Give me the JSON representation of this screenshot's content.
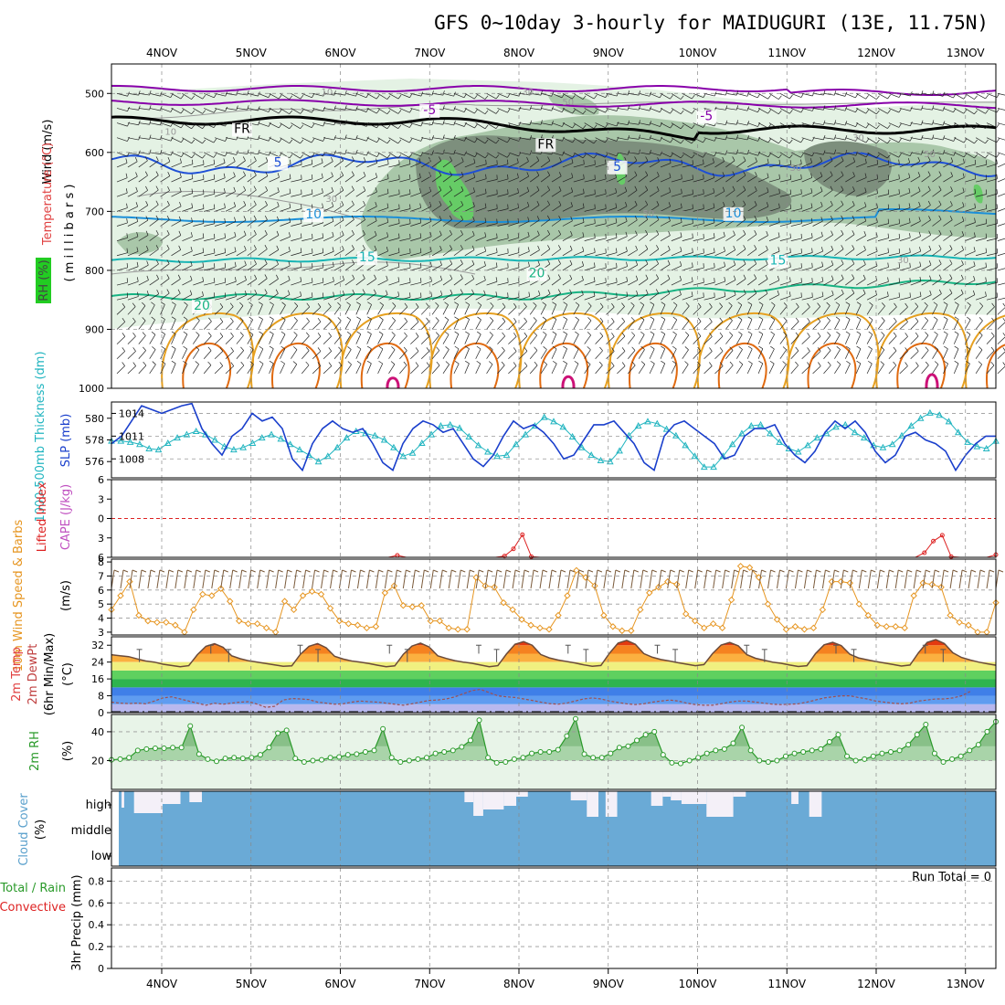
{
  "chart_data": {
    "type": "line",
    "title": "GFS 0~10day 3-hourly for MAIDUGURI (13E, 11.75N)",
    "x_dates": [
      "4NOV",
      "5NOV",
      "6NOV",
      "7NOV",
      "8NOV",
      "9NOV",
      "10NOV",
      "11NOV",
      "12NOV",
      "13NOV"
    ],
    "colors": {
      "rh_light": "#e4f2e4",
      "rh_mid": "#a9c7a9",
      "rh_dark": "#7d8f7d",
      "rh_bright": "#66cc66",
      "temp_purple": "#8800aa",
      "temp_fr": "#000000",
      "temp_blue": "#1e4fd6",
      "temp_lightblue": "#1b8fd8",
      "temp_teal": "#17b5b5",
      "temp_green": "#17b383",
      "cape_orange": "#e6a020",
      "cape_dark": "#e06a10",
      "cape_magenta": "#cc1177",
      "slp": "#1a3fcc",
      "thickness": "#22b5c0",
      "li": "#dd2222",
      "wind10": "#e69520",
      "cloud": "#6aaad6",
      "cloud_clear": "#f4f0f8",
      "rh2m": "#2a9a2a"
    },
    "panels": [
      {
        "id": "upper-air",
        "ylabel": "Wind (m/s)",
        "ylabel2": "Temperature (°C)",
        "ylabel3": "( m i l l i b a r s )",
        "rh_legend": "RH (%)",
        "y_ticks": [
          "500",
          "600",
          "700",
          "800",
          "900",
          "1000"
        ],
        "ylim": [
          450,
          1000
        ],
        "y_scale": "linear-reversed",
        "temp_labels": [
          {
            "text": "-5",
            "x": 3.0,
            "p": 535,
            "color_key": "temp_purple"
          },
          {
            "text": "-5",
            "x": 6.1,
            "p": 545,
            "color_key": "temp_purple"
          },
          {
            "text": "FR",
            "x": 0.9,
            "p": 567,
            "color_key": "temp_fr"
          },
          {
            "text": "FR",
            "x": 4.3,
            "p": 593,
            "color_key": "temp_fr"
          },
          {
            "text": "5",
            "x": 1.3,
            "p": 624,
            "color_key": "temp_blue"
          },
          {
            "text": "5",
            "x": 5.1,
            "p": 631,
            "color_key": "temp_blue"
          },
          {
            "text": "10",
            "x": 1.7,
            "p": 712,
            "color_key": "temp_lightblue"
          },
          {
            "text": "10",
            "x": 6.4,
            "p": 710,
            "color_key": "temp_lightblue"
          },
          {
            "text": "15",
            "x": 2.3,
            "p": 785,
            "color_key": "temp_teal"
          },
          {
            "text": "15",
            "x": 6.9,
            "p": 790,
            "color_key": "temp_teal"
          },
          {
            "text": "20",
            "x": 4.2,
            "p": 812,
            "color_key": "temp_green"
          },
          {
            "text": "20",
            "x": 0.45,
            "p": 867,
            "color_key": "temp_green"
          }
        ],
        "rh_labels": [
          {
            "text": "10",
            "x": 1.85,
            "p": 503
          },
          {
            "text": "30",
            "x": 4.1,
            "p": 503
          },
          {
            "text": "50",
            "x": 4.55,
            "p": 520
          },
          {
            "text": "10",
            "x": 0.1,
            "p": 570
          },
          {
            "text": "30",
            "x": 7.8,
            "p": 580
          },
          {
            "text": "50",
            "x": 8.6,
            "p": 608
          },
          {
            "text": "50",
            "x": 7.1,
            "p": 631
          },
          {
            "text": "30",
            "x": 1.9,
            "p": 684
          },
          {
            "text": "50",
            "x": 5.45,
            "p": 709
          },
          {
            "text": "30",
            "x": 8.3,
            "p": 788
          }
        ]
      },
      {
        "id": "slp",
        "ylabel": "1000-500mb Thickness (dm)",
        "ylabel2": "SLP (mb)",
        "y_ticks_left": [
          "576",
          "578",
          "580"
        ],
        "y_ticks_right": [
          "1008",
          "1011",
          "1014"
        ],
        "ylim_left": [
          574.5,
          581.5
        ],
        "ylim_right": [
          1005.5,
          1015.5
        ]
      },
      {
        "id": "cape",
        "ylabel": "Lifted Index",
        "ylabel2": "CAPE (J/kg)",
        "y_ticks": [
          "-6",
          "-3",
          "0",
          "3",
          "6"
        ],
        "ylim": [
          -6,
          6
        ]
      },
      {
        "id": "wind10",
        "ylabel": "10m Wind Speed & Barbs",
        "ylabel2": "(m/s)",
        "y_ticks": [
          "3",
          "4",
          "5",
          "6",
          "7",
          "8"
        ],
        "ylim": [
          2.8,
          8.2
        ]
      },
      {
        "id": "temp2m",
        "ylabel": "2m Temp",
        "ylabel2": "2m DewPt",
        "ylabel3": "(6hr Min/Max)",
        "unit": "(°C)",
        "y_ticks": [
          "0",
          "8",
          "16",
          "24",
          "32"
        ],
        "ylim": [
          0,
          36
        ]
      },
      {
        "id": "rh2m",
        "ylabel": "2m RH",
        "unit": "(%)",
        "y_ticks": [
          "20",
          "40"
        ],
        "ylim": [
          0,
          52
        ]
      },
      {
        "id": "cloud",
        "ylabel": "Cloud Cover",
        "unit": "(%)",
        "levels": [
          "high",
          "middle",
          "low"
        ]
      },
      {
        "id": "precip",
        "ylabel": "Total / Rain",
        "ylabel2": "Convective",
        "ylabel3": "3hr Precip (mm)",
        "y_ticks": [
          "0",
          "0.2",
          "0.4",
          "0.6",
          "0.8"
        ],
        "ylim": [
          0,
          0.92
        ],
        "run_total": "Run Total = 0"
      }
    ],
    "series": {
      "slp_mb": [
        1010,
        1011,
        1013,
        1015,
        1014.5,
        1014,
        1014.5,
        1015,
        1015.3,
        1012,
        1010,
        1008.5,
        1011,
        1012,
        1014,
        1013,
        1013.5,
        1012,
        1008,
        1006.5,
        1010,
        1012,
        1013,
        1012,
        1011.5,
        1012,
        1010,
        1007.5,
        1006.5,
        1010,
        1012,
        1013,
        1012.5,
        1011.5,
        1012,
        1010,
        1008,
        1007,
        1008.5,
        1011,
        1013,
        1012,
        1012.5,
        1011.5,
        1010,
        1008,
        1008.5,
        1010.5,
        1012.5,
        1012.5,
        1013,
        1011.5,
        1010,
        1007.5,
        1006.5,
        1011,
        1012.5,
        1013,
        1012,
        1011,
        1010,
        1008,
        1008.5,
        1011,
        1012,
        1012,
        1012.5,
        1010,
        1008.5,
        1007.5,
        1009,
        1011.5,
        1013,
        1012,
        1013,
        1011.5,
        1009,
        1007.5,
        1008.5,
        1011,
        1011.5,
        1010.5,
        1010,
        1009,
        1006.5,
        1008.5,
        1010,
        1011,
        1011
      ],
      "thickness_dm": [
        577.9,
        577.9,
        577.8,
        577.6,
        577.2,
        577.1,
        577.7,
        578.2,
        578.5,
        578.8,
        578.5,
        578,
        577.4,
        577.1,
        577.3,
        577.7,
        578.2,
        578.5,
        578.1,
        577.6,
        577.1,
        576.6,
        576,
        576.5,
        577.3,
        578.2,
        578.8,
        578.6,
        578.4,
        578,
        577.3,
        576.5,
        576.8,
        577.7,
        578.5,
        579.3,
        579.4,
        579.1,
        578.3,
        577.5,
        576.9,
        576.5,
        576.6,
        577.6,
        578.5,
        579.3,
        580.1,
        579.7,
        579.2,
        578.3,
        577.3,
        576.6,
        576.1,
        576,
        577,
        578.4,
        579.3,
        579.7,
        579.5,
        579,
        578.4,
        577.5,
        576.5,
        575.5,
        575.5,
        576.5,
        577.6,
        578.6,
        579.3,
        579.4,
        578.6,
        577.8,
        577.2,
        576.9,
        577.5,
        578.2,
        578.6,
        579.2,
        579.4,
        578.7,
        578.2,
        577.5,
        577.3,
        577.6,
        578.4,
        579.3,
        580,
        580.5,
        580.3,
        579.7,
        578.7,
        577.8,
        577.4,
        577.2,
        577.9
      ],
      "li": [
        6,
        6,
        6,
        6,
        6,
        6,
        6,
        6,
        6,
        6,
        6,
        6,
        6,
        6,
        6,
        6,
        6,
        6,
        6,
        6,
        6,
        6,
        6,
        6,
        6,
        6,
        6,
        6,
        6,
        6,
        6,
        6,
        5.7,
        6,
        6,
        6,
        6,
        6,
        6,
        6,
        6,
        6,
        6,
        6,
        5.8,
        4.7,
        2.5,
        5.9,
        6,
        6,
        6,
        6,
        6,
        6,
        6,
        6,
        6,
        6,
        6,
        6,
        6,
        6,
        6,
        6,
        6,
        6,
        6,
        6,
        6,
        6,
        6,
        6,
        6,
        6,
        6,
        6,
        6,
        6,
        6,
        6,
        6,
        6,
        6,
        6,
        6,
        6,
        6,
        6,
        6,
        6,
        6,
        5.3,
        3.5,
        2.6,
        5.9,
        6,
        6,
        6,
        6,
        5.6
      ],
      "wind10_ms": [
        4.6,
        5.6,
        6.6,
        4.2,
        3.8,
        3.7,
        3.7,
        3.5,
        3,
        4.6,
        5.7,
        5.6,
        6.1,
        5.2,
        3.8,
        3.6,
        3.6,
        3.3,
        3,
        5.2,
        4.6,
        5.6,
        5.9,
        5.7,
        4.7,
        3.8,
        3.6,
        3.5,
        3.3,
        3.4,
        5.8,
        6.3,
        4.9,
        4.8,
        4.9,
        3.8,
        3.8,
        3.3,
        3.2,
        3.2,
        6.9,
        6.3,
        6.2,
        5.1,
        4.6,
        3.9,
        3.5,
        3.3,
        3.2,
        4.2,
        5.6,
        7.4,
        6.9,
        6.3,
        4.2,
        3.4,
        3.1,
        3.1,
        4.6,
        5.8,
        6.2,
        6.6,
        6.4,
        4.3,
        3.8,
        3.3,
        3.6,
        3.3,
        5.3,
        7.7,
        7.6,
        6.9,
        5,
        3.9,
        3.2,
        3.4,
        3.2,
        3.3,
        4.6,
        6.6,
        6.6,
        6.5,
        5,
        4.2,
        3.5,
        3.4,
        3.4,
        3.3,
        5.6,
        6.5,
        6.4,
        6.2,
        4.2,
        3.7,
        3.5,
        3,
        3,
        5.1
      ],
      "temp2m_C": [
        27.5,
        27,
        26.6,
        25.5,
        24.5,
        24,
        23,
        22.4,
        21.8,
        22.3,
        27.5,
        31.5,
        32.7,
        31,
        27,
        25.6,
        24.6,
        24,
        23.3,
        22.7,
        22,
        22.2,
        27.7,
        31.5,
        32.8,
        30.8,
        26.7,
        25.4,
        24.5,
        24,
        23.3,
        22.5,
        21.8,
        22.2,
        27.7,
        31.6,
        33,
        31.2,
        27,
        25.7,
        24.7,
        24,
        23.4,
        22.6,
        21.8,
        22.3,
        27.8,
        32.5,
        33.7,
        32,
        27.6,
        26,
        25,
        24.3,
        23.6,
        22.7,
        22,
        22.4,
        28.2,
        33,
        34.3,
        32.5,
        28,
        26.3,
        25.2,
        24.5,
        23.7,
        23,
        22.3,
        22.8,
        28,
        32.1,
        33.3,
        31.7,
        27.5,
        25.8,
        24.9,
        24,
        23.4,
        22.6,
        21.9,
        22.3,
        28,
        32.2,
        33.4,
        31.8,
        27.7,
        26,
        25.1,
        24.3,
        23.6,
        22.9,
        22.1,
        22.6,
        28.5,
        33.3,
        34.7,
        32.8,
        28.4,
        26.2,
        25,
        24,
        23.2,
        22.5
      ],
      "dewpt2m_C": [
        5,
        4.5,
        4.3,
        4.5,
        4.2,
        5.5,
        7,
        7.5,
        6.5,
        5.5,
        4.5,
        3.5,
        4.5,
        4,
        4.5,
        5,
        5.2,
        4,
        2.5,
        3,
        6,
        6.7,
        6.5,
        6.2,
        5,
        4.5,
        4,
        4.2,
        5,
        5.5,
        5.2,
        5,
        4.5,
        4,
        3.5,
        4.2,
        5,
        5.8,
        6,
        6.5,
        7.5,
        9,
        10.5,
        11,
        9.5,
        8,
        7.5,
        7.2,
        6.5,
        5.8,
        5,
        4.3,
        4,
        4.5,
        5.5,
        6.5,
        7,
        6.5,
        5.5,
        4.8,
        4.2,
        3.8,
        4.2,
        5,
        5.5,
        6,
        5.5,
        4.5,
        3.8,
        3.5,
        3.5,
        4.2,
        5,
        5.5,
        5.5,
        5,
        4.5,
        4,
        3.8,
        4,
        4.2,
        5,
        6,
        7,
        7.5,
        8,
        8,
        7.2,
        6.5,
        5.5,
        5,
        4.5,
        4.2,
        4.5,
        5.5,
        6,
        6.5,
        6.5,
        7,
        8,
        10
      ],
      "rh2m_pct": [
        20.5,
        21,
        22,
        27,
        28,
        28.5,
        28.5,
        29,
        29,
        44,
        24.5,
        21,
        19.5,
        21.5,
        22,
        21.5,
        22,
        24,
        29,
        39,
        41,
        21.5,
        19,
        20,
        20.5,
        22,
        22.5,
        24,
        24.5,
        26,
        27,
        42,
        22,
        19,
        20,
        21,
        22,
        25,
        26,
        27,
        29.5,
        34,
        48,
        22,
        18.5,
        19,
        21,
        22,
        25,
        26,
        26,
        27.5,
        37,
        49,
        24.5,
        22,
        22,
        25,
        29,
        30,
        34,
        38,
        40,
        24,
        18.5,
        18,
        20,
        22,
        25,
        27,
        28,
        32,
        43,
        27,
        20,
        19,
        20,
        23,
        25,
        26,
        27,
        28,
        33,
        38,
        23,
        20,
        21,
        23,
        25,
        26,
        27,
        31,
        38,
        45,
        25,
        19,
        21,
        23,
        27,
        31,
        40,
        47
      ]
    },
    "cloud_high_gaps": [
      {
        "x0": 0.0,
        "x1": 0.03,
        "v": 18
      },
      {
        "x0": 0.14,
        "x1": 0.46,
        "v": 24
      },
      {
        "x0": 0.46,
        "x1": 0.66,
        "v": 14
      },
      {
        "x0": 0.76,
        "x1": 0.9,
        "v": 12
      },
      {
        "x0": 3.84,
        "x1": 3.94,
        "v": 12
      },
      {
        "x0": 3.94,
        "x1": 4.05,
        "v": 27
      },
      {
        "x0": 4.05,
        "x1": 4.28,
        "v": 20
      },
      {
        "x0": 4.28,
        "x1": 4.42,
        "v": 16
      },
      {
        "x0": 4.42,
        "x1": 4.55,
        "v": 6
      },
      {
        "x0": 5.03,
        "x1": 5.21,
        "v": 10
      },
      {
        "x0": 5.21,
        "x1": 5.34,
        "v": 28
      },
      {
        "x0": 5.42,
        "x1": 5.55,
        "v": 28
      },
      {
        "x0": 5.93,
        "x1": 6.06,
        "v": 16
      },
      {
        "x0": 6.06,
        "x1": 6.15,
        "v": 6
      },
      {
        "x0": 6.15,
        "x1": 6.27,
        "v": 10
      },
      {
        "x0": 6.27,
        "x1": 6.55,
        "v": 14
      },
      {
        "x0": 6.55,
        "x1": 6.85,
        "v": 28
      },
      {
        "x0": 6.85,
        "x1": 6.99,
        "v": 6
      },
      {
        "x0": 7.5,
        "x1": 7.58,
        "v": 14
      },
      {
        "x0": 7.7,
        "x1": 7.84,
        "v": 28
      }
    ]
  }
}
